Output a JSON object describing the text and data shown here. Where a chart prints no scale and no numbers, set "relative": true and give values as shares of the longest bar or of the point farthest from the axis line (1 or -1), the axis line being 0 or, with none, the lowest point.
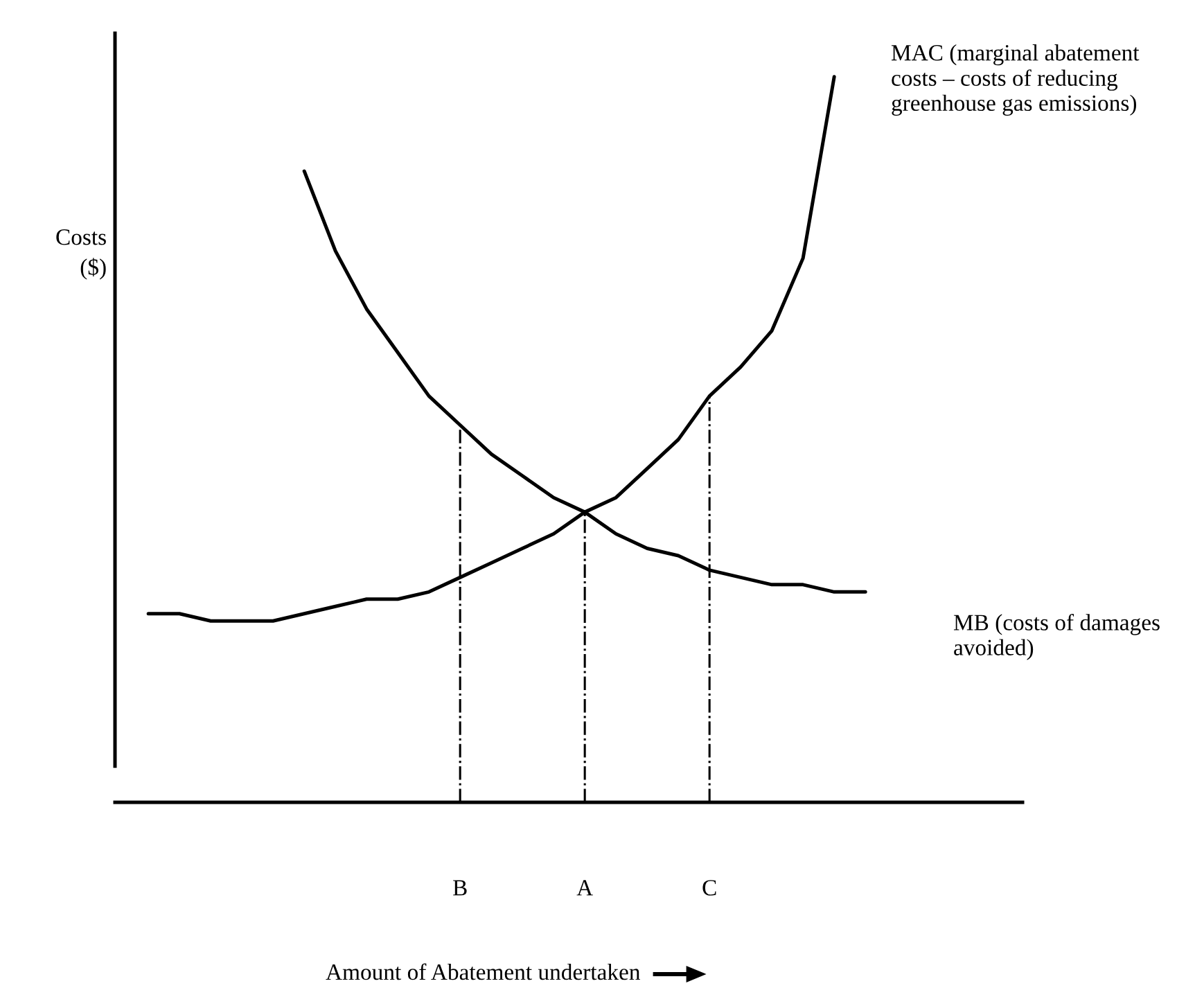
{
  "chart_data": {
    "type": "line",
    "relative": true,
    "ylabel": "Costs\n($)",
    "xlabel": "Amount of Abatement undertaken",
    "categories": [
      null,
      null,
      null,
      null,
      null,
      null,
      null,
      null,
      null,
      null,
      "B",
      null,
      null,
      null,
      "A",
      null,
      null,
      null,
      "C",
      null,
      null,
      null,
      null,
      null
    ],
    "series": [
      {
        "name": "MAC (marginal abatement costs – costs of reducing greenhouse gas emissions)",
        "color": "#000000",
        "values": [
          0.26,
          0.26,
          0.25,
          0.25,
          0.25,
          0.26,
          0.27,
          0.28,
          0.28,
          0.29,
          0.31,
          0.33,
          0.35,
          0.37,
          0.4,
          0.42,
          0.46,
          0.5,
          0.56,
          0.6,
          0.65,
          0.75,
          1,
          null
        ]
      },
      {
        "name": "MB (costs of damages avoided)",
        "color": "#000000",
        "values": [
          null,
          null,
          null,
          null,
          null,
          0.87,
          0.76,
          0.68,
          0.62,
          0.56,
          0.52,
          0.48,
          0.45,
          0.42,
          0.4,
          0.37,
          0.35,
          0.34,
          0.32,
          0.31,
          0.3,
          0.3,
          0.29,
          0.29
        ]
      }
    ],
    "ref_lines": [
      {
        "axis": "x",
        "value": "B",
        "line_style": "dashdot"
      },
      {
        "axis": "x",
        "value": "A",
        "line_style": "dashdot"
      },
      {
        "axis": "x",
        "value": "C",
        "line_style": "dashdot"
      }
    ],
    "legend": false,
    "grid": false,
    "marker": "none",
    "line_style": "solid"
  }
}
